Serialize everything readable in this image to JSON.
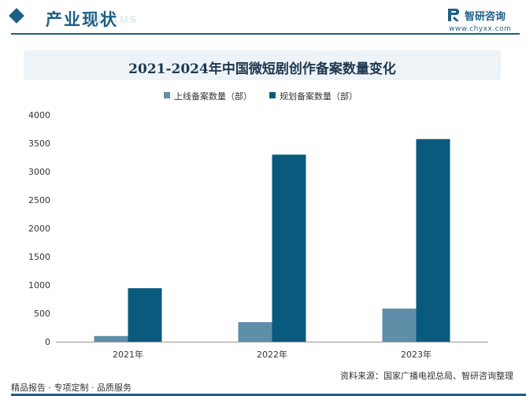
{
  "header": {
    "section_title": "产业现状",
    "ghost_text": "Status",
    "brand_name": "智研咨询",
    "brand_url": "www.chyxx.com"
  },
  "colors": {
    "brand": "#1d5f86",
    "online_series": "#5f8fa8",
    "planned_series": "#0a5a7e"
  },
  "chart_data": {
    "type": "bar",
    "title": "2021-2024年中国微短剧创作备案数量变化",
    "categories": [
      "2021年",
      "2022年",
      "2023年"
    ],
    "series": [
      {
        "name": "上线备案数量（部）",
        "values": [
          100,
          345,
          584
        ]
      },
      {
        "name": "规划备案数量（部）",
        "values": [
          943,
          3300,
          3574
        ]
      }
    ],
    "ylim": [
      0,
      4000
    ],
    "yticks": [
      0,
      500,
      1000,
      1500,
      2000,
      2500,
      3000,
      3500,
      4000
    ],
    "xlabel": "",
    "ylabel": "",
    "grid": false,
    "legend": "top-center"
  },
  "footer": {
    "left": "精品报告 · 专项定制 · 品质服务",
    "source": "资料来源：国家广播电视总局、智研咨询整理"
  }
}
